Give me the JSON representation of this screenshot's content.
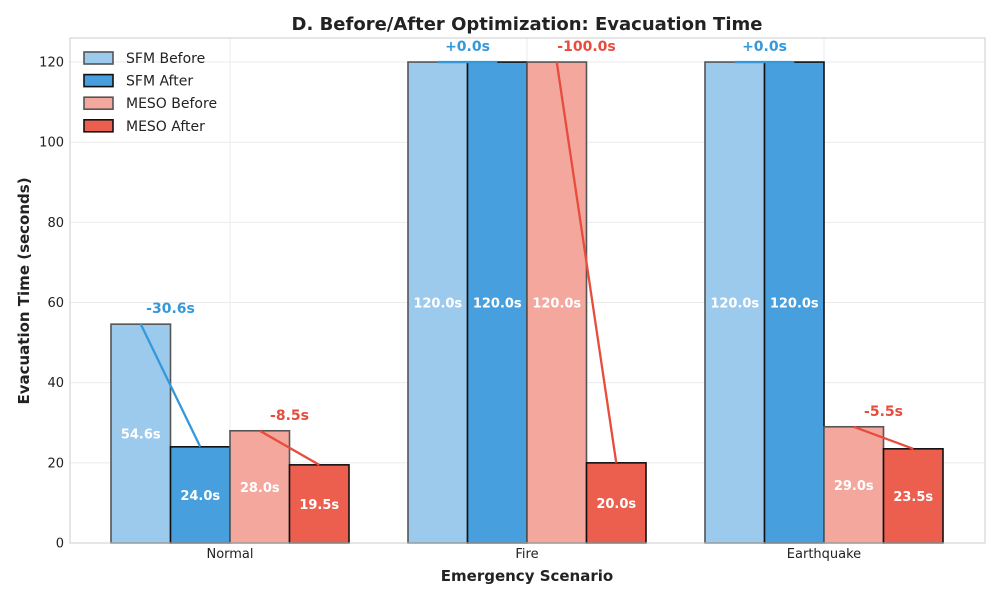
{
  "chart_data": {
    "type": "bar",
    "title": "D. Before/After Optimization: Evacuation Time",
    "xlabel": "Emergency Scenario",
    "ylabel": "Evacuation Time (seconds)",
    "categories": [
      "Normal",
      "Fire",
      "Earthquake"
    ],
    "ylim": [
      0,
      126
    ],
    "yticks": [
      0,
      20,
      40,
      60,
      80,
      100,
      120
    ],
    "grid": true,
    "legend_position": "top-left",
    "series": [
      {
        "name": "SFM Before",
        "values": [
          54.6,
          120.0,
          120.0
        ],
        "labels": [
          "54.6s",
          "120.0s",
          "120.0s"
        ],
        "color": "#9ccaed",
        "edge": "#555555",
        "opacity": 1
      },
      {
        "name": "SFM After",
        "values": [
          24.0,
          120.0,
          120.0
        ],
        "labels": [
          "24.0s",
          "120.0s",
          "120.0s"
        ],
        "color": "#47a0dd",
        "edge": "#111111",
        "opacity": 1
      },
      {
        "name": "MESO Before",
        "values": [
          28.0,
          120.0,
          29.0
        ],
        "labels": [
          "28.0s",
          "120.0s",
          "29.0s"
        ],
        "color": "#f3a79d",
        "edge": "#555555",
        "opacity": 1
      },
      {
        "name": "MESO After",
        "values": [
          19.5,
          20.0,
          23.5
        ],
        "labels": [
          "19.5s",
          "20.0s",
          "23.5s"
        ],
        "color": "#ec5e4e",
        "edge": "#111111",
        "opacity": 1
      }
    ],
    "annotations": [
      {
        "group": "SFM",
        "color": "#3498db",
        "deltas": [
          "-30.6s",
          "+0.0s",
          "+0.0s"
        ]
      },
      {
        "group": "MESO",
        "color": "#e74c3c",
        "deltas": [
          "-8.5s",
          "-100.0s",
          "-5.5s"
        ]
      }
    ]
  }
}
